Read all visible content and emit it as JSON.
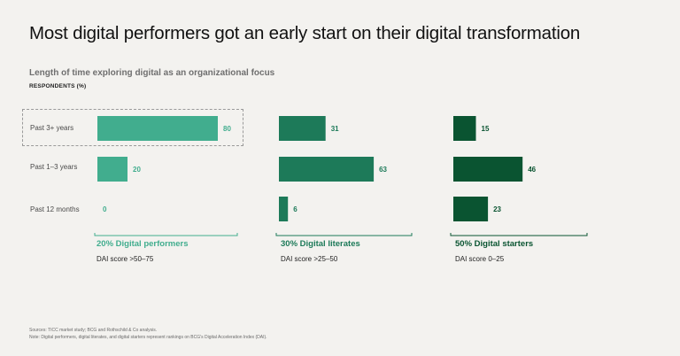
{
  "title": "Most digital performers got an early start on their digital transformation",
  "subtitle": "Length of time exploring digital as an organizational focus",
  "units_label": "RESPONDENTS (%)",
  "colors": {
    "performers": "#41ad8e",
    "literates": "#1d7a59",
    "starters": "#0a5431"
  },
  "chart_data": {
    "type": "bar",
    "orientation": "horizontal",
    "categories": [
      "Past 3+ years",
      "Past 1–3 years",
      "Past 12  months"
    ],
    "xlim": [
      0,
      100
    ],
    "grid": false,
    "series": [
      {
        "name": "20% Digital performers",
        "subtitle": "DAI score >50–75",
        "values": [
          80,
          20,
          0
        ]
      },
      {
        "name": "30% Digital literates",
        "subtitle": "DAI score >25–50",
        "values": [
          31,
          63,
          6
        ]
      },
      {
        "name": "50% Digital starters",
        "subtitle": "DAI score 0–25",
        "values": [
          15,
          46,
          23
        ]
      }
    ],
    "highlighted_category": "Past 3+ years"
  },
  "footnotes": {
    "sources": "Sources: TICC market study; BCG and Rothschild & Co analysis.",
    "note": "Note: Digital performers, digital literates, and digital starters represent rankings on BCG's Digital Acceleration Index (DAI)."
  }
}
